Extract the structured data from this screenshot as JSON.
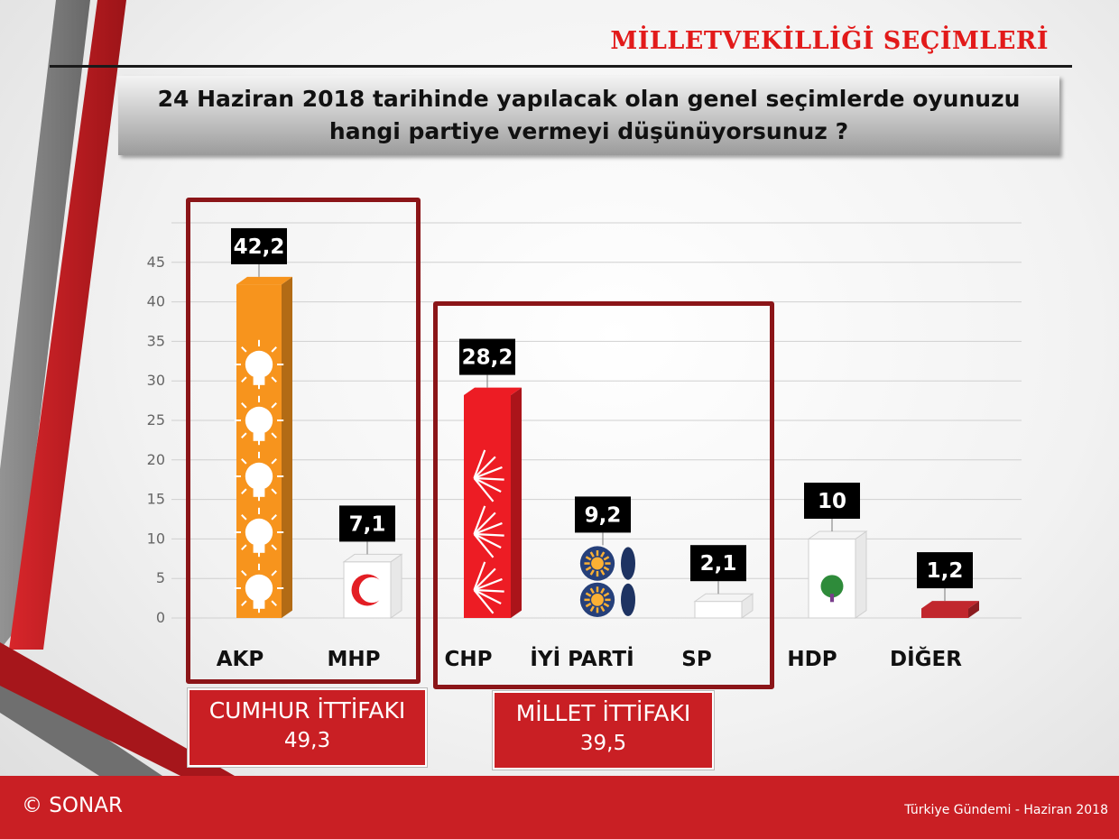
{
  "header": {
    "title": "MİLLETVEKİLLİĞİ SEÇİMLERİ",
    "question": "24 Haziran 2018 tarihinde yapılacak olan genel seçimlerde oyunuzu hangi partiye vermeyi düşünüyorsunuz ?"
  },
  "groups": [
    {
      "name": "CUMHUR İTTİFAKI",
      "value": "49,3"
    },
    {
      "name": "MİLLET İTTİFAKI",
      "value": "39,5"
    }
  ],
  "footer": {
    "copyright": "© SONAR",
    "note": "Türkiye Gündemi - Haziran 2018"
  },
  "colors": {
    "accent_red": "#c91f24",
    "dark_red": "#8b1518",
    "akp": "#f7941d",
    "mhp": "#ffffff",
    "chp": "#ed1c24",
    "iyi": "#26407a",
    "sp": "#ffffff",
    "hdp": "#ffffff",
    "diger": "#c1272d"
  },
  "chart_data": {
    "type": "bar",
    "categories": [
      "AKP",
      "MHP",
      "CHP",
      "İYİ PARTİ",
      "SP",
      "HDP",
      "DİĞER"
    ],
    "values": [
      42.2,
      7.1,
      28.2,
      9.2,
      2.1,
      10,
      1.2
    ],
    "value_labels": [
      "42,2",
      "7,1",
      "28,2",
      "9,2",
      "2,1",
      "10",
      "1,2"
    ],
    "yticks": [
      0,
      5,
      10,
      15,
      20,
      25,
      30,
      35,
      40,
      45
    ],
    "ylim": [
      0,
      50
    ],
    "grid": true,
    "bar_colors": [
      "#f7941d",
      "#ffffff",
      "#ed1c24",
      "#26407a",
      "#ffffff",
      "#ffffff",
      "#c1272d"
    ],
    "bar_icons": [
      "bulb-icon",
      "crescent-icon",
      "six-arrows-icon",
      "sun-icon",
      "crescent-icon",
      "tree-icon",
      ""
    ]
  }
}
